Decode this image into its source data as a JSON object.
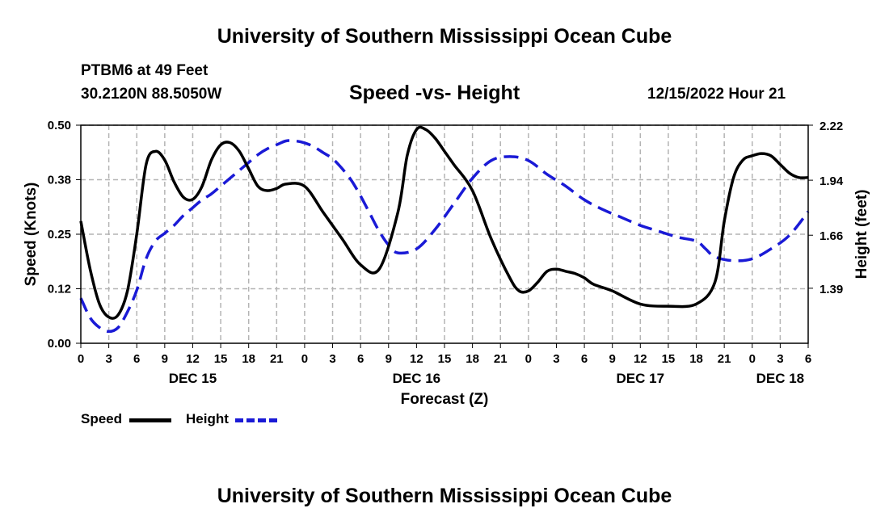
{
  "header": {
    "title": "University of Southern Mississippi Ocean Cube",
    "station": "PTBM6 at 49 Feet",
    "coords": "30.2120N  88.5050W",
    "subtitle": "Speed -vs- Height",
    "datetime": "12/15/2022 Hour 21"
  },
  "footer": {
    "title": "University of Southern Mississippi Ocean Cube"
  },
  "legend": {
    "speed_label": "Speed",
    "height_label": "Height"
  },
  "colors": {
    "speed": "#000000",
    "height": "#1a1ad6",
    "grid": "#b4b4b4"
  },
  "chart_data": {
    "type": "line",
    "xlabel": "Forecast (Z)",
    "ylabel": "Speed (Knots)",
    "y2label": "Height (feet)",
    "xlim": [
      0,
      78
    ],
    "ylim": [
      0,
      0.5
    ],
    "y2lim": [
      1.11,
      2.22
    ],
    "x_tick_labels": [
      "0",
      "3",
      "6",
      "9",
      "12",
      "15",
      "18",
      "21",
      "0",
      "3",
      "6",
      "9",
      "12",
      "15",
      "18",
      "21",
      "0",
      "3",
      "6",
      "9",
      "12",
      "15",
      "18",
      "21",
      "0",
      "3",
      "6"
    ],
    "y_ticks": [
      0,
      0.125,
      0.25,
      0.375,
      0.5
    ],
    "y_tick_labels": [
      "0.00",
      "0.12",
      "0.25",
      "0.38",
      "0.50"
    ],
    "y2_ticks": [
      1.39,
      1.66,
      1.94,
      2.22
    ],
    "y2_tick_labels": [
      "1.39",
      "1.66",
      "1.94",
      "2.22"
    ],
    "day_labels": [
      {
        "x": 12,
        "label": "DEC 15"
      },
      {
        "x": 36,
        "label": "DEC 16"
      },
      {
        "x": 60,
        "label": "DEC 17"
      },
      {
        "x": 75,
        "label": "DEC 18"
      }
    ],
    "series": [
      {
        "name": "Speed",
        "axis": "left",
        "x": [
          0,
          1,
          2,
          3,
          4,
          5,
          6,
          7,
          8,
          9,
          10,
          11,
          12,
          13,
          14,
          15,
          16,
          17,
          18,
          19,
          20,
          21,
          22,
          24,
          26,
          28,
          30,
          32,
          34,
          35,
          36,
          37,
          38,
          39,
          40,
          42,
          44,
          46,
          47,
          48,
          49,
          50,
          51,
          52,
          53,
          54,
          55,
          57,
          60,
          63,
          66,
          68,
          69,
          70,
          71,
          72,
          73,
          74,
          75,
          76,
          77,
          78
        ],
        "values": [
          0.28,
          0.17,
          0.09,
          0.06,
          0.065,
          0.12,
          0.25,
          0.41,
          0.44,
          0.42,
          0.37,
          0.335,
          0.33,
          0.36,
          0.42,
          0.455,
          0.46,
          0.44,
          0.4,
          0.36,
          0.35,
          0.355,
          0.365,
          0.36,
          0.3,
          0.24,
          0.18,
          0.17,
          0.3,
          0.43,
          0.49,
          0.49,
          0.47,
          0.44,
          0.41,
          0.35,
          0.24,
          0.15,
          0.12,
          0.12,
          0.14,
          0.165,
          0.17,
          0.165,
          0.16,
          0.15,
          0.135,
          0.12,
          0.09,
          0.085,
          0.09,
          0.14,
          0.28,
          0.38,
          0.42,
          0.43,
          0.435,
          0.43,
          0.41,
          0.39,
          0.38,
          0.38
        ],
        "values_note": "x positions are hours from the first forecast tick; Speed values are in knots"
      },
      {
        "name": "Height",
        "axis": "right",
        "x": [
          0,
          1,
          2,
          3,
          4,
          5,
          6,
          7,
          8,
          9,
          10,
          11,
          12,
          13,
          14,
          15,
          16,
          17,
          18,
          19,
          20,
          21,
          22,
          23,
          24,
          25,
          26,
          27,
          28,
          29,
          30,
          31,
          32,
          33,
          34,
          36,
          38,
          40,
          42,
          44,
          46,
          48,
          50,
          52,
          54,
          56,
          58,
          60,
          62,
          64,
          66,
          67,
          68,
          70,
          72,
          74,
          76,
          78
        ],
        "values": [
          1.34,
          1.24,
          1.19,
          1.17,
          1.19,
          1.27,
          1.38,
          1.54,
          1.63,
          1.67,
          1.71,
          1.76,
          1.8,
          1.84,
          1.87,
          1.91,
          1.95,
          1.99,
          2.03,
          2.07,
          2.1,
          2.12,
          2.14,
          2.14,
          2.13,
          2.11,
          2.08,
          2.05,
          2.0,
          1.94,
          1.86,
          1.77,
          1.68,
          1.61,
          1.57,
          1.59,
          1.69,
          1.82,
          1.95,
          2.04,
          2.06,
          2.04,
          1.97,
          1.91,
          1.84,
          1.79,
          1.75,
          1.71,
          1.68,
          1.65,
          1.63,
          1.59,
          1.55,
          1.53,
          1.54,
          1.59,
          1.66,
          1.78
        ],
        "values_note": "Height values are in feet on the right-hand axis"
      }
    ]
  }
}
